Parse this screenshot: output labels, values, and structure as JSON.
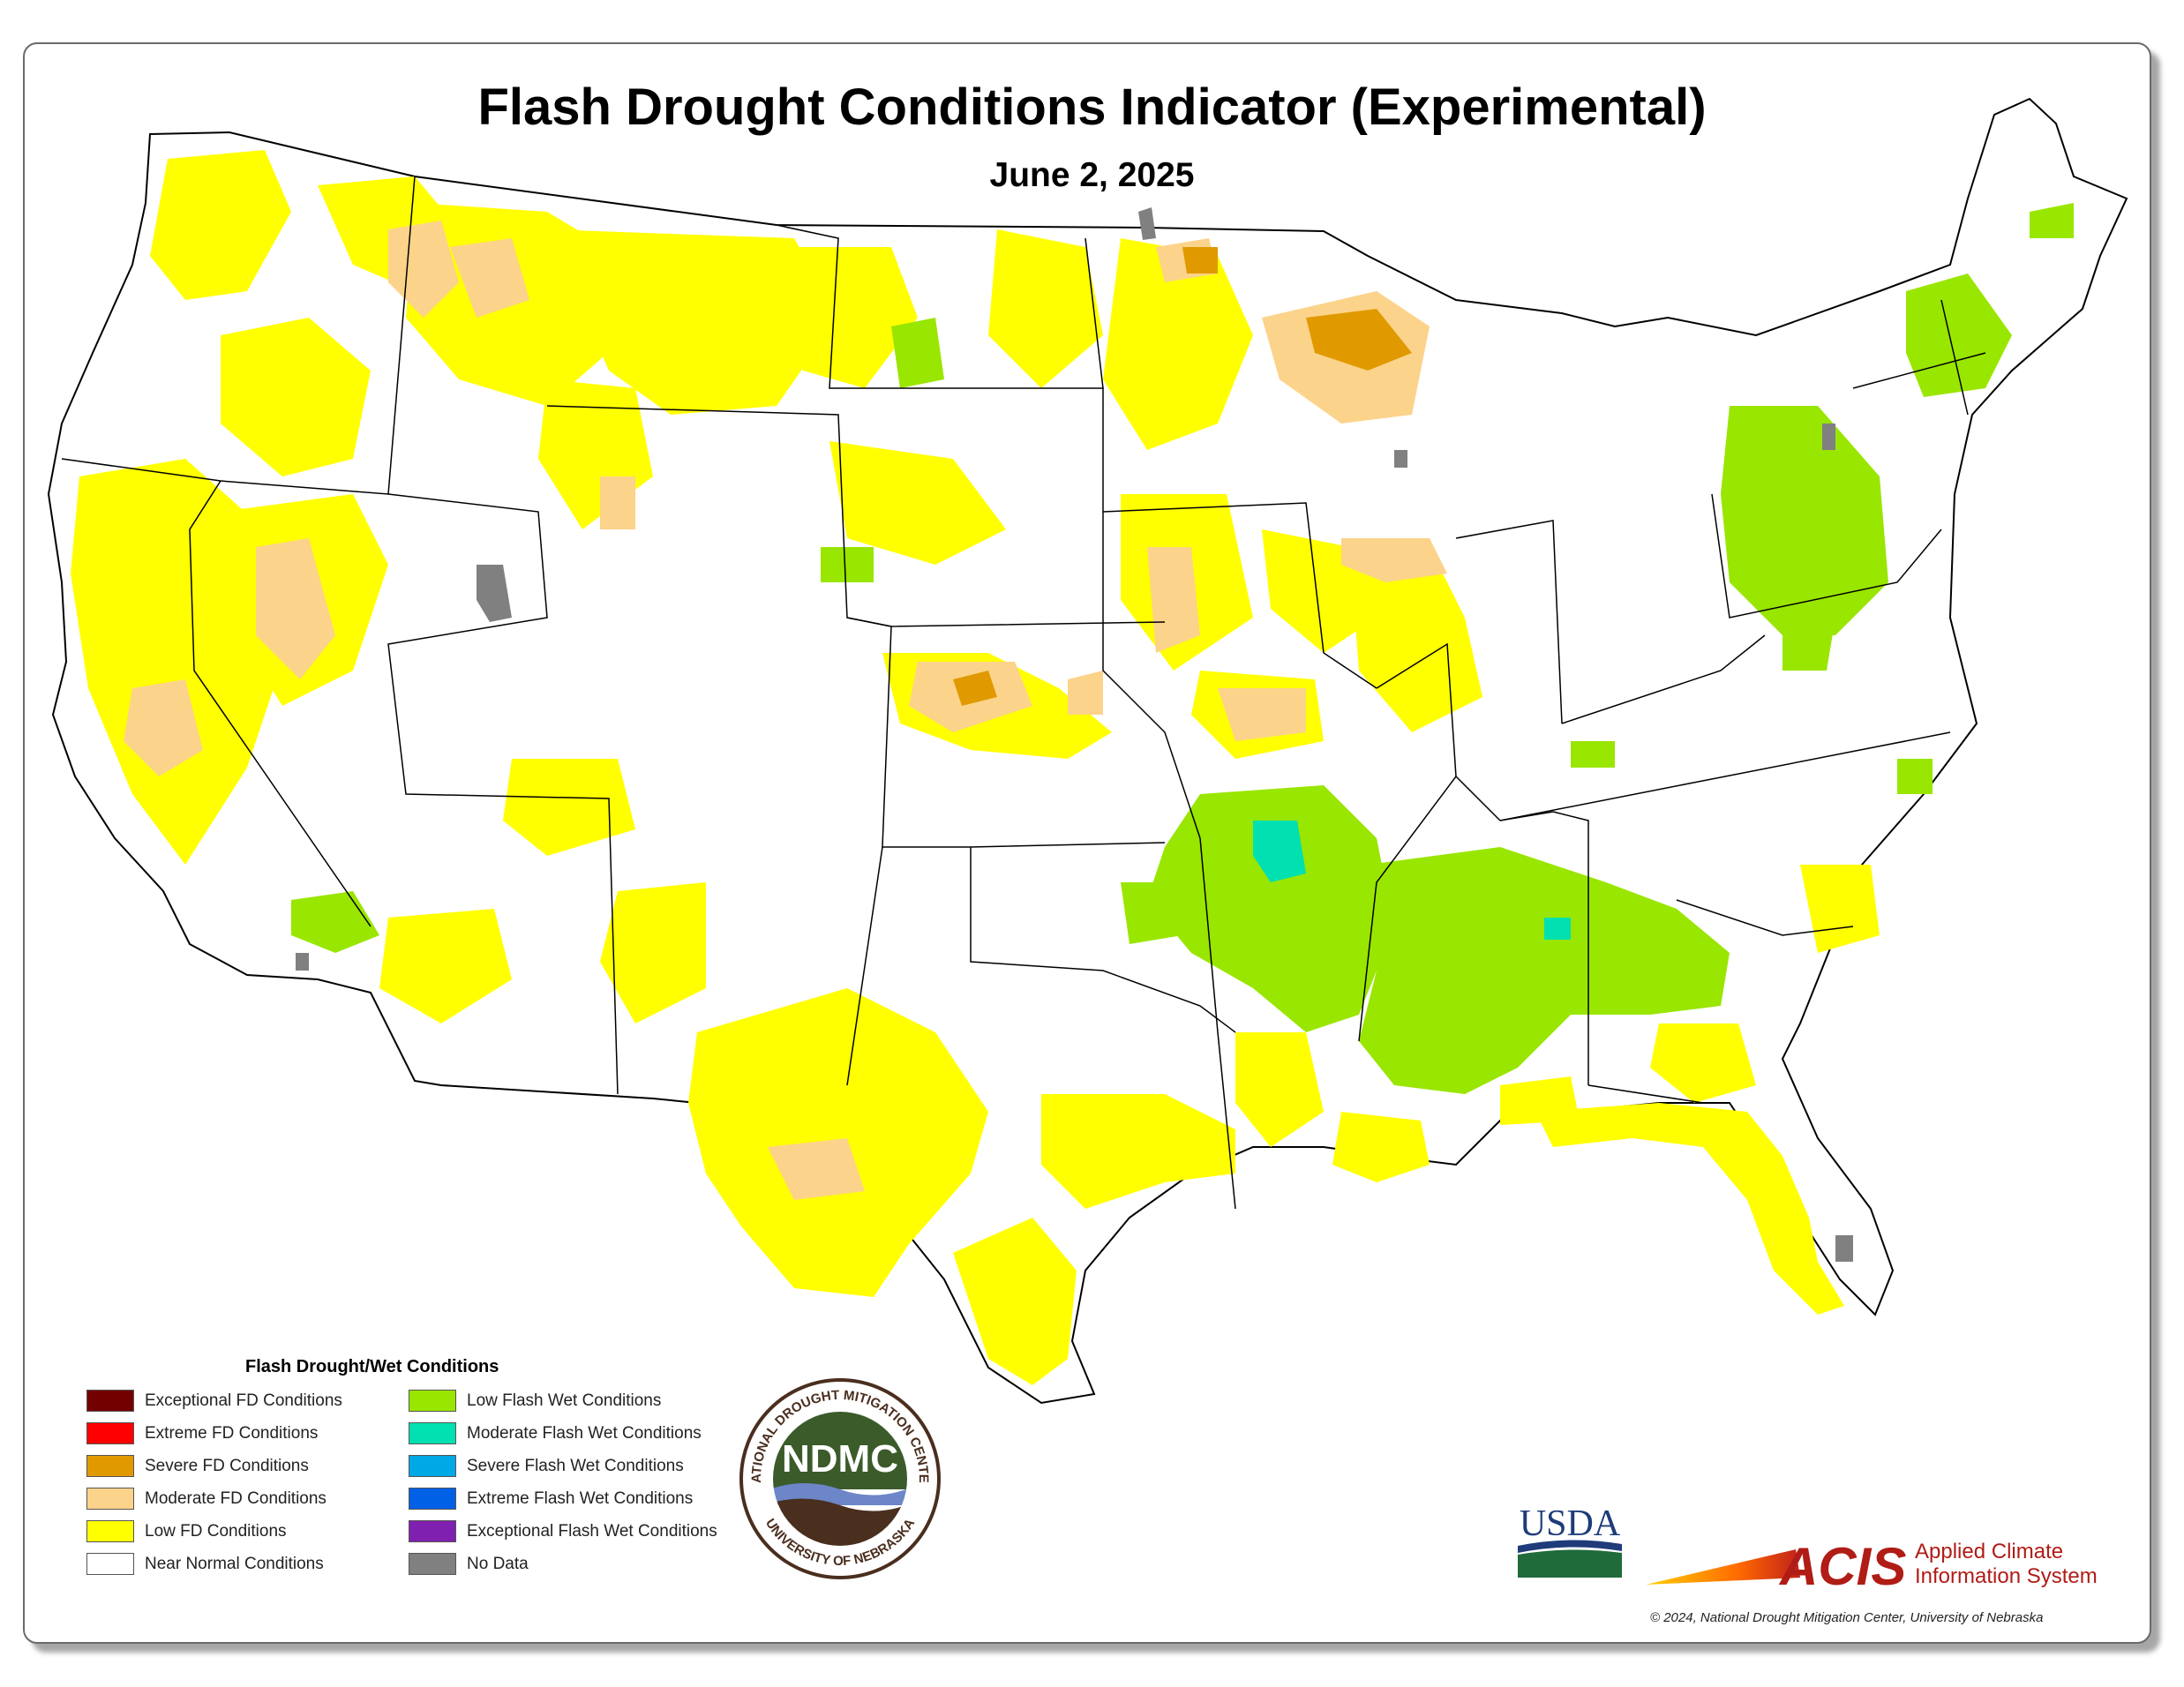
{
  "title": "Flash Drought Conditions Indicator (Experimental)",
  "date": "June 2, 2025",
  "legend": {
    "title": "Flash Drought/Wet Conditions",
    "left_items": [
      {
        "label": "Exceptional FD Conditions",
        "color": "#730000"
      },
      {
        "label": "Extreme FD Conditions",
        "color": "#ff0000"
      },
      {
        "label": "Severe FD Conditions",
        "color": "#e09a00"
      },
      {
        "label": "Moderate FD Conditions",
        "color": "#fcd38a"
      },
      {
        "label": "Low FD Conditions",
        "color": "#ffff00"
      },
      {
        "label": "Near Normal Conditions",
        "color": "#ffffff"
      }
    ],
    "right_items": [
      {
        "label": "Low Flash Wet Conditions",
        "color": "#99e600"
      },
      {
        "label": "Moderate Flash Wet Conditions",
        "color": "#00e0b0"
      },
      {
        "label": "Severe Flash Wet Conditions",
        "color": "#00a8e6"
      },
      {
        "label": "Extreme Flash Wet Conditions",
        "color": "#0060e6"
      },
      {
        "label": "Exceptional Flash Wet Conditions",
        "color": "#8020b0"
      },
      {
        "label": "No Data",
        "color": "#808080"
      }
    ]
  },
  "logos": {
    "ndmc_text": "NDMC",
    "ndmc_ring_top": "NATIONAL DROUGHT MITIGATION CENTER",
    "ndmc_ring_bottom": "UNIVERSITY OF NEBRASKA",
    "usda_text": "USDA",
    "acis_text": "ACIS",
    "acis_line1": "Applied Climate",
    "acis_line2": "Information System"
  },
  "copyright": "© 2024, National Drought Mitigation Center, University of Nebraska"
}
